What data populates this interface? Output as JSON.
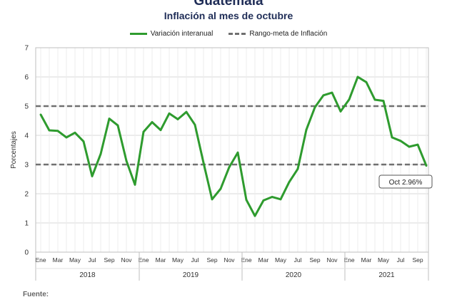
{
  "header": {
    "title": "Guatemala",
    "subtitle": "Inflación al mes de octubre"
  },
  "legend": {
    "series_label": "Variación interanual",
    "target_label": "Rango-meta de Inflación"
  },
  "footer": {
    "label": "Fuente:"
  },
  "colors": {
    "series": "#2e9b2e",
    "target": "#707070",
    "title": "#1f2d57"
  },
  "chart_data": {
    "type": "line",
    "title": "Guatemala",
    "subtitle": "Inflación al mes de octubre",
    "xlabel": "",
    "ylabel": "Porcentajes",
    "ylim": [
      0,
      7
    ],
    "yticks": [
      0,
      1,
      2,
      3,
      4,
      5,
      6,
      7
    ],
    "grid": true,
    "legend_position": "top-center",
    "x": [
      "2018-01",
      "2018-02",
      "2018-03",
      "2018-04",
      "2018-05",
      "2018-06",
      "2018-07",
      "2018-08",
      "2018-09",
      "2018-10",
      "2018-11",
      "2018-12",
      "2019-01",
      "2019-02",
      "2019-03",
      "2019-04",
      "2019-05",
      "2019-06",
      "2019-07",
      "2019-08",
      "2019-09",
      "2019-10",
      "2019-11",
      "2019-12",
      "2020-01",
      "2020-02",
      "2020-03",
      "2020-04",
      "2020-05",
      "2020-06",
      "2020-07",
      "2020-08",
      "2020-09",
      "2020-10",
      "2020-11",
      "2020-12",
      "2021-01",
      "2021-02",
      "2021-03",
      "2021-04",
      "2021-05",
      "2021-06",
      "2021-07",
      "2021-08",
      "2021-09",
      "2021-10"
    ],
    "x_tick_labels": [
      "Ene",
      "Mar",
      "May",
      "Jul",
      "Sep",
      "Nov",
      "Ene",
      "Mar",
      "May",
      "Jul",
      "Sep",
      "Nov",
      "Ene",
      "Mar",
      "May",
      "Jul",
      "Sep",
      "Nov",
      "Ene",
      "Mar",
      "May",
      "Jul",
      "Sep"
    ],
    "year_labels": [
      "2018",
      "2019",
      "2020",
      "2021"
    ],
    "series": [
      {
        "name": "Variación interanual",
        "values": [
          4.71,
          4.17,
          4.15,
          3.93,
          4.09,
          3.79,
          2.6,
          3.36,
          4.57,
          4.34,
          3.13,
          2.31,
          4.12,
          4.45,
          4.18,
          4.75,
          4.55,
          4.8,
          4.36,
          3.06,
          1.81,
          2.17,
          2.91,
          3.41,
          1.79,
          1.24,
          1.77,
          1.89,
          1.81,
          2.4,
          2.85,
          4.19,
          4.96,
          5.37,
          5.46,
          4.82,
          5.23,
          6.0,
          5.82,
          5.22,
          5.18,
          3.93,
          3.81,
          3.61,
          3.68,
          2.96
        ]
      },
      {
        "name": "Rango-meta de Inflación",
        "values_upper": 5,
        "values_lower": 3
      }
    ],
    "annotation": {
      "text": "Oct 2.96%",
      "x": "2021-10",
      "y": 2.96
    }
  }
}
